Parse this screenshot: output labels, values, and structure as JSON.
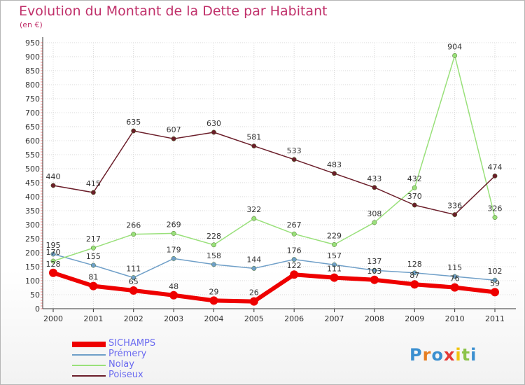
{
  "title": "Evolution du Montant de la Dette par Habitant",
  "subtitle": "(en €)",
  "colors": {
    "title": "#c0306a",
    "axis": "#333333",
    "grid": "#d8d8d8",
    "legend_label": "#6a6af0"
  },
  "chart_data": {
    "type": "line",
    "title": "Evolution du Montant de la Dette par Habitant",
    "ylabel": "(en €)",
    "xlabel": "",
    "categories": [
      "2000",
      "2001",
      "2002",
      "2003",
      "2004",
      "2005",
      "2006",
      "2007",
      "2008",
      "2009",
      "2010",
      "2011"
    ],
    "ylim": [
      0,
      950
    ],
    "yticks": [
      "0",
      "50",
      "100",
      "150",
      "200",
      "250",
      "300",
      "350",
      "400",
      "450",
      "500",
      "550",
      "600",
      "650",
      "700",
      "750",
      "800",
      "850",
      "900",
      "950"
    ],
    "grid": true,
    "legend_position": "bottom-left",
    "series": [
      {
        "name": "SICHAMPS",
        "color": "#ee0000",
        "values": [
          128,
          81,
          65,
          48,
          29,
          26,
          122,
          111,
          103,
          87,
          76,
          59
        ],
        "labels": [
          "128",
          "81",
          "65",
          "48",
          "29",
          "26",
          "122",
          "111",
          "103",
          "87",
          "76",
          "59"
        ]
      },
      {
        "name": "Prémery",
        "color": "#6f9fc8",
        "values": [
          195,
          155,
          111,
          179,
          158,
          144,
          176,
          157,
          137,
          128,
          115,
          102
        ],
        "labels": [
          "195",
          "155",
          "111",
          "179",
          "158",
          "144",
          "176",
          "157",
          "137",
          "128",
          "115",
          "102"
        ]
      },
      {
        "name": "Nolay",
        "color": "#99e07a",
        "values": [
          170,
          217,
          266,
          269,
          228,
          322,
          267,
          229,
          308,
          432,
          904,
          326
        ],
        "labels": [
          "170",
          "217",
          "266",
          "269",
          "228",
          "322",
          "267",
          "229",
          "308",
          "432",
          "904",
          "326"
        ]
      },
      {
        "name": "Poiseux",
        "color": "#6b1e2a",
        "values": [
          440,
          415,
          635,
          607,
          630,
          581,
          533,
          483,
          433,
          370,
          336,
          474
        ],
        "labels": [
          "440",
          "415",
          "635",
          "607",
          "630",
          "581",
          "533",
          "483",
          "433",
          "370",
          "336",
          "474"
        ]
      }
    ]
  },
  "logo": {
    "text": "Proxiti",
    "letter_colors": [
      "#3a8fd0",
      "#e67e22",
      "#3a8fd0",
      "#e53935",
      "#f1c40f",
      "#8bc34a",
      "#3a8fd0"
    ]
  }
}
